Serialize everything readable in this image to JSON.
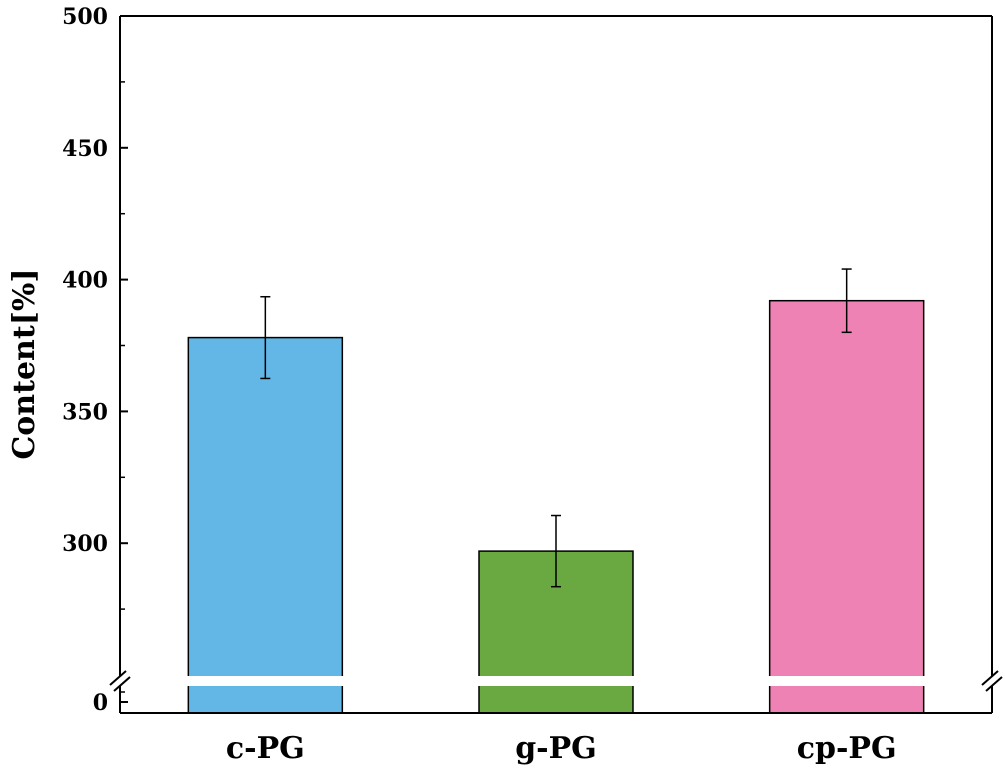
{
  "chart_data": {
    "type": "bar",
    "title": "",
    "xlabel": "",
    "ylabel": "Content[%]",
    "categories": [
      "c-PG",
      "g-PG",
      "cp-PG"
    ],
    "values": [
      378,
      297,
      392
    ],
    "errors": [
      15.5,
      13.5,
      12
    ],
    "colors": [
      "#63b7e6",
      "#6aa842",
      "#ef82b4"
    ],
    "ylim": [
      0,
      500
    ],
    "axis_break": {
      "from": 0,
      "to": 250
    },
    "y_ticks": [
      {
        "value": 0,
        "label": "0"
      },
      {
        "value": 300,
        "label": "300"
      },
      {
        "value": 350,
        "label": "350"
      },
      {
        "value": 400,
        "label": "400"
      },
      {
        "value": 450,
        "label": "450"
      },
      {
        "value": 500,
        "label": "500"
      }
    ],
    "grid": false,
    "legend": "none"
  }
}
